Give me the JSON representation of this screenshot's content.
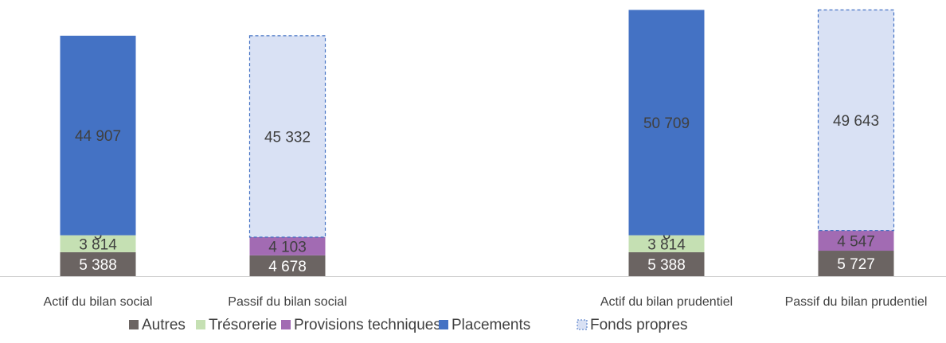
{
  "chart_data": {
    "type": "bar",
    "stacked": true,
    "categories": [
      "Actif du bilan social",
      "Passif du bilan social",
      "Actif du bilan prudentiel",
      "Passif du bilan prudentiel"
    ],
    "series": [
      {
        "name": "Autres",
        "color": "#6b6462",
        "values": [
          5388,
          4678,
          5388,
          5727
        ],
        "labels": [
          "5 388",
          "4 678",
          "5 388",
          "5 727"
        ]
      },
      {
        "name": "Trésorerie",
        "color": "#c5e0b3",
        "values": [
          3814,
          0,
          3814,
          0
        ],
        "labels": [
          "3 814",
          "",
          "3 814",
          ""
        ]
      },
      {
        "name": "Provisions techniques",
        "color": "#a26bb3",
        "values": [
          5,
          4103,
          6,
          4547
        ],
        "labels": [
          "5",
          "4 103",
          "6",
          "4 547"
        ]
      },
      {
        "name": "Placements",
        "color": "#4472c4",
        "values": [
          44907,
          0,
          50709,
          0
        ],
        "labels": [
          "44 907",
          "",
          "50 709",
          ""
        ]
      },
      {
        "name": "Fonds propres",
        "color": "#d9e1f4",
        "border": "#4472c4",
        "dashed": true,
        "values": [
          0,
          45332,
          0,
          49643
        ],
        "labels": [
          "",
          "45 332",
          "",
          "49 643"
        ]
      }
    ],
    "title": "",
    "xlabel": "",
    "ylabel": "",
    "legend_position": "bottom",
    "grid": false,
    "axis_visible": false
  }
}
